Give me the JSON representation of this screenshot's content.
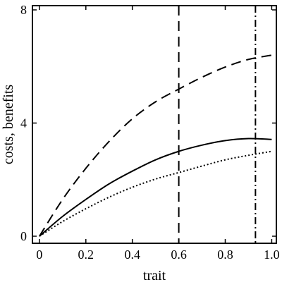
{
  "chart_data": {
    "type": "line",
    "xlabel": "trait",
    "ylabel": "costs, benefits",
    "xlim": [
      -0.03,
      1.02
    ],
    "ylim": [
      -0.25,
      8.15
    ],
    "xticks": [
      0,
      0.2,
      0.4,
      0.6,
      0.8,
      1.0
    ],
    "xtick_labels": [
      "0",
      "0.2",
      "0.4",
      "0.6",
      "0.8",
      "1.0"
    ],
    "yticks": [
      0,
      4,
      8
    ],
    "ytick_labels": [
      "0",
      "4",
      "8"
    ],
    "grid": false,
    "series": [
      {
        "style": "dashed",
        "x": [
          0,
          0.1,
          0.2,
          0.3,
          0.4,
          0.5,
          0.6,
          0.7,
          0.8,
          0.9,
          1.0
        ],
        "values": [
          0,
          1.3,
          2.4,
          3.35,
          4.15,
          4.75,
          5.2,
          5.62,
          5.98,
          6.25,
          6.4
        ]
      },
      {
        "style": "solid",
        "x": [
          0,
          0.1,
          0.2,
          0.3,
          0.4,
          0.5,
          0.6,
          0.7,
          0.8,
          0.9,
          1.0
        ],
        "values": [
          0,
          0.7,
          1.3,
          1.85,
          2.3,
          2.7,
          3.0,
          3.22,
          3.38,
          3.45,
          3.42
        ]
      },
      {
        "style": "dotted",
        "x": [
          0,
          0.1,
          0.2,
          0.3,
          0.4,
          0.5,
          0.6,
          0.7,
          0.8,
          0.9,
          1.0
        ],
        "values": [
          0,
          0.52,
          0.97,
          1.38,
          1.73,
          2.02,
          2.25,
          2.48,
          2.7,
          2.86,
          3.0
        ]
      }
    ],
    "vlines": [
      {
        "x": 0.6,
        "style": "dashed"
      },
      {
        "x": 0.93,
        "style": "dashdot"
      }
    ]
  }
}
